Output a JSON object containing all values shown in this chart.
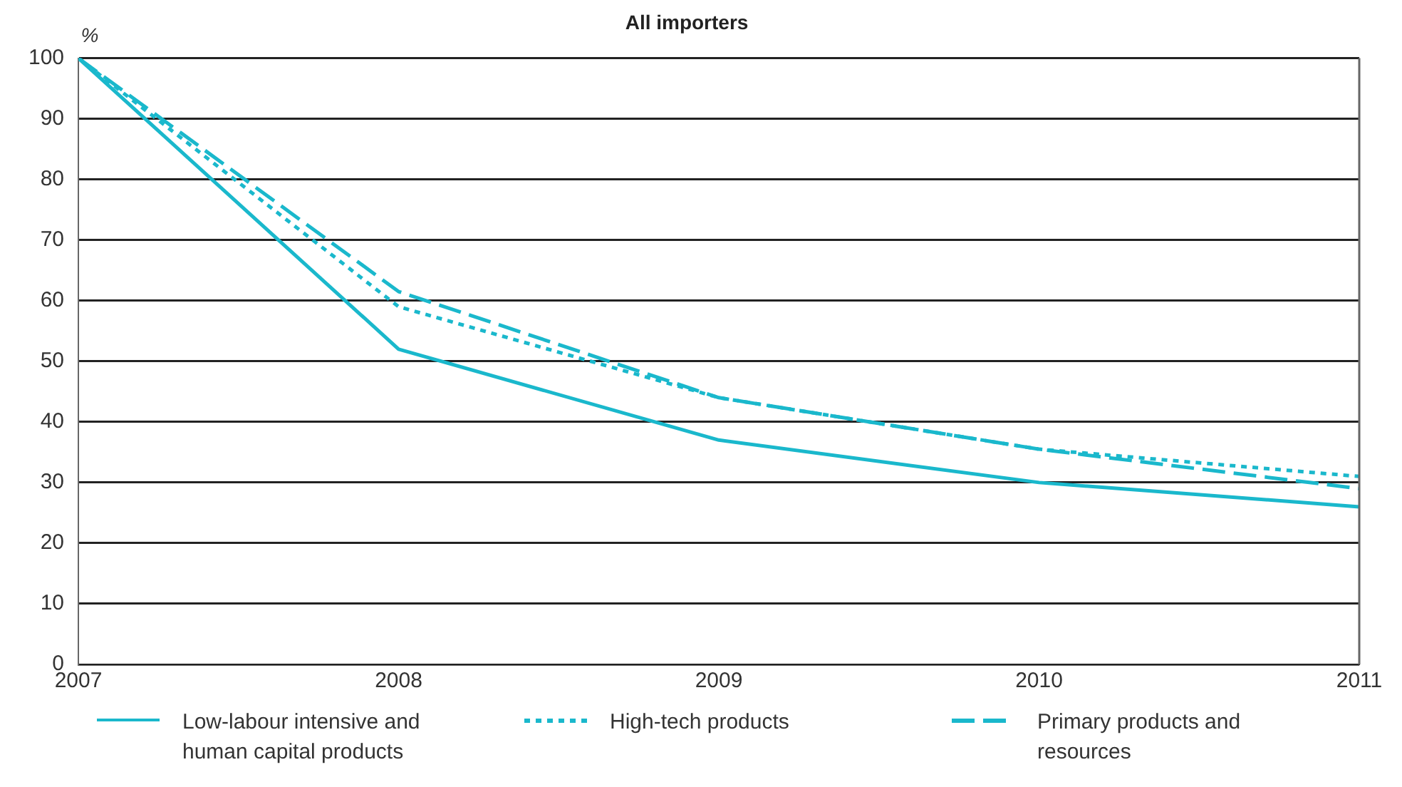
{
  "chart_data": {
    "type": "line",
    "title": "All importers",
    "ylabel": "%",
    "x": [
      2007,
      2008,
      2009,
      2010,
      2011
    ],
    "xlim": [
      2007,
      2011
    ],
    "xticks": [
      2007,
      2008,
      2009,
      2010,
      2011
    ],
    "ylim": [
      0,
      100
    ],
    "yticks": [
      0,
      10,
      20,
      30,
      40,
      50,
      60,
      70,
      80,
      90,
      100
    ],
    "grid": "y",
    "legend": "bottom",
    "marker": "none",
    "series": [
      {
        "name": "Low-labour intensive and human capital products",
        "color": "#1ab8cc",
        "line_style": "solid",
        "values": [
          100,
          52,
          37,
          30,
          26
        ]
      },
      {
        "name": "High-tech products",
        "color": "#1ab8cc",
        "line_style": "dotted",
        "values": [
          100,
          59,
          44,
          35.5,
          31
        ]
      },
      {
        "name": "Primary products and resources",
        "color": "#1ab8cc",
        "line_style": "dashed",
        "values": [
          100,
          61.5,
          44,
          35.5,
          29
        ]
      }
    ]
  }
}
